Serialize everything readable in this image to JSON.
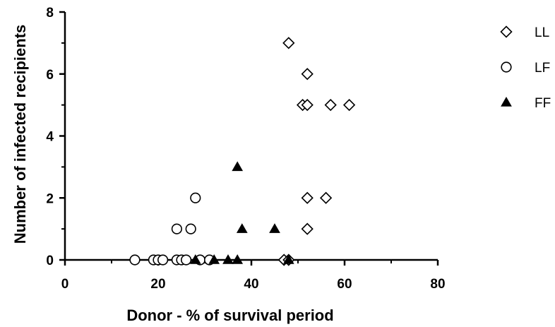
{
  "chart_data": {
    "type": "scatter",
    "xlabel": "Donor - % of survival period",
    "ylabel": "Number of infected recipients",
    "xlim": [
      0,
      80
    ],
    "ylim": [
      0,
      8
    ],
    "x_ticks": [
      0,
      20,
      40,
      60,
      80
    ],
    "y_ticks": [
      0,
      2,
      4,
      6,
      8
    ],
    "grid": false,
    "legend_position": "top-right",
    "series": [
      {
        "name": "LL",
        "marker": "diamond-open",
        "points": [
          [
            48,
            7
          ],
          [
            52,
            6
          ],
          [
            51,
            5
          ],
          [
            52,
            5
          ],
          [
            57,
            5
          ],
          [
            61,
            5
          ],
          [
            52,
            2
          ],
          [
            56,
            2
          ],
          [
            52,
            1
          ],
          [
            47,
            0
          ],
          [
            48,
            0
          ]
        ]
      },
      {
        "name": "LF",
        "marker": "circle-open",
        "points": [
          [
            28,
            2
          ],
          [
            24,
            1
          ],
          [
            27,
            1
          ],
          [
            15,
            0
          ],
          [
            19,
            0
          ],
          [
            20,
            0
          ],
          [
            21,
            0
          ],
          [
            24,
            0
          ],
          [
            25,
            0
          ],
          [
            26,
            0
          ],
          [
            29,
            0
          ],
          [
            31,
            0
          ]
        ]
      },
      {
        "name": "FF",
        "marker": "triangle-filled",
        "points": [
          [
            37,
            3
          ],
          [
            38,
            1
          ],
          [
            45,
            1
          ],
          [
            28,
            0
          ],
          [
            32,
            0
          ],
          [
            35,
            0
          ],
          [
            37,
            0
          ],
          [
            48,
            0
          ]
        ]
      }
    ]
  }
}
